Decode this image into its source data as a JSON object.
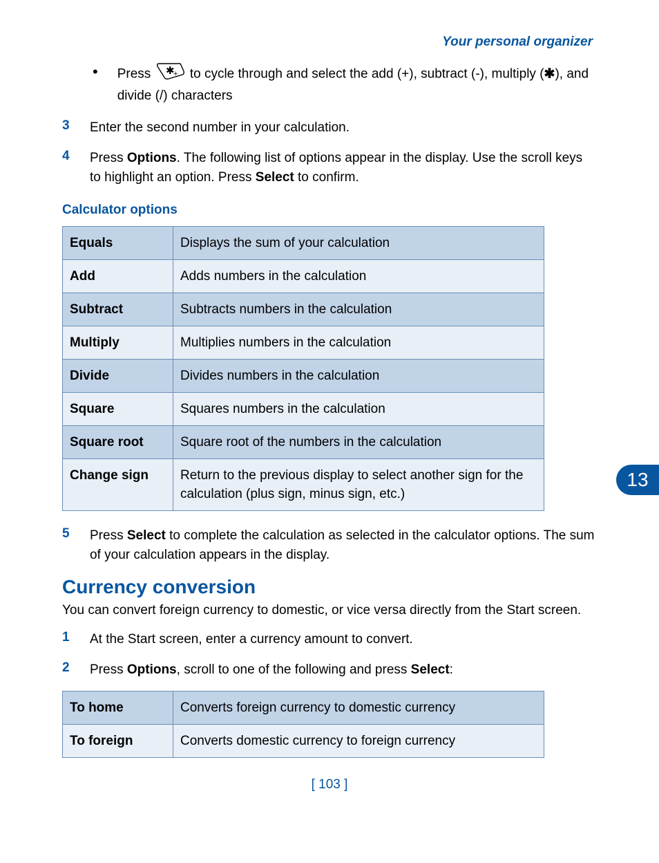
{
  "header": {
    "title": "Your personal organizer"
  },
  "bullet": {
    "before_key": "Press ",
    "after_key": " to cycle through and select the add (+), subtract (-), multiply (",
    "after_key2": "), and divide (/) characters"
  },
  "steps_top": [
    {
      "num": "3",
      "text": "Enter the second number in your calculation."
    },
    {
      "num": "4",
      "pre": "Press ",
      "bold1": "Options",
      "mid": ". The following list of options appear in the display. Use the scroll keys to highlight an option. Press ",
      "bold2": "Select",
      "post": " to confirm."
    }
  ],
  "table1": {
    "caption": "Calculator options",
    "rows": [
      {
        "label": "Equals",
        "desc": "Displays the sum of your calculation"
      },
      {
        "label": "Add",
        "desc": "Adds numbers in the calculation"
      },
      {
        "label": "Subtract",
        "desc": "Subtracts numbers in the calculation"
      },
      {
        "label": "Multiply",
        "desc": "Multiplies numbers in the calculation"
      },
      {
        "label": "Divide",
        "desc": "Divides numbers in the calculation"
      },
      {
        "label": "Square",
        "desc": "Squares numbers in the calculation"
      },
      {
        "label": "Square root",
        "desc": "Square root of the numbers in the calculation"
      },
      {
        "label": "Change sign",
        "desc": "Return to the previous display to select another sign for the calculation (plus sign, minus sign, etc.)"
      }
    ],
    "row_colors": [
      "#c1d3e7",
      "#e8eff7"
    ]
  },
  "step5": {
    "num": "5",
    "pre": "Press ",
    "bold1": "Select",
    "post": " to complete the calculation as selected in the calculator options. The sum of your calculation appears in the display."
  },
  "section_heading": "Currency conversion",
  "section_para": "You can convert foreign currency to domestic, or vice versa directly from the Start screen.",
  "steps_bottom": [
    {
      "num": "1",
      "text": "At the Start screen, enter a currency amount to convert."
    },
    {
      "num": "2",
      "pre": "Press ",
      "bold1": "Options",
      "mid": ", scroll to one of the following and press ",
      "bold2": "Select",
      "post": ":"
    }
  ],
  "table2": {
    "rows": [
      {
        "label": "To home",
        "desc": "Converts foreign currency to domestic currency"
      },
      {
        "label": "To foreign",
        "desc": "Converts domestic currency to foreign currency"
      }
    ]
  },
  "page_number": "[ 103 ]",
  "side_tab": "13",
  "colors": {
    "accent": "#0856a0",
    "table_border": "#6a8eb5",
    "row_dark": "#c1d3e7",
    "row_light": "#e8eff7"
  }
}
